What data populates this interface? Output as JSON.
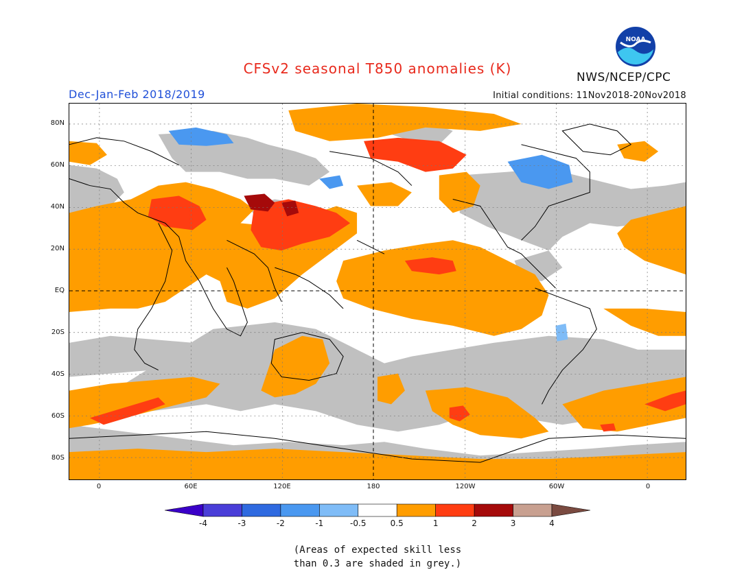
{
  "title": "CFSv2 seasonal T850 anomalies (K)",
  "period": "Dec-Jan-Feb 2018/2019",
  "initial_conditions": "Initial conditions: 11Nov2018-20Nov2018",
  "agency": "NWS/NCEP/CPC",
  "logo_text": "NOAA",
  "lat_labels": [
    "80N",
    "60N",
    "40N",
    "20N",
    "EQ",
    "20S",
    "40S",
    "60S",
    "80S"
  ],
  "lon_labels": [
    "0",
    "60E",
    "120E",
    "180",
    "120W",
    "60W",
    "0"
  ],
  "colorbar_labels": [
    "-4",
    "-3",
    "-2",
    "-1",
    "-0.5",
    "0.5",
    "1",
    "2",
    "3",
    "4"
  ],
  "colorbar_colors": [
    "#3a00c8",
    "#4a3ed8",
    "#2f6ae0",
    "#4a98f0",
    "#7fbcf7",
    "#ffffff",
    "#ff9d00",
    "#ff3d12",
    "#a50a0a",
    "#c8a090",
    "#7a4a40"
  ],
  "note_line1": "(Areas of expected skill less",
  "note_line2": "than 0.3 are shaded in grey.)",
  "colors": {
    "title": "#e8291c",
    "period": "#1f4fd8",
    "grey_skill": "#c0c0c0"
  }
}
